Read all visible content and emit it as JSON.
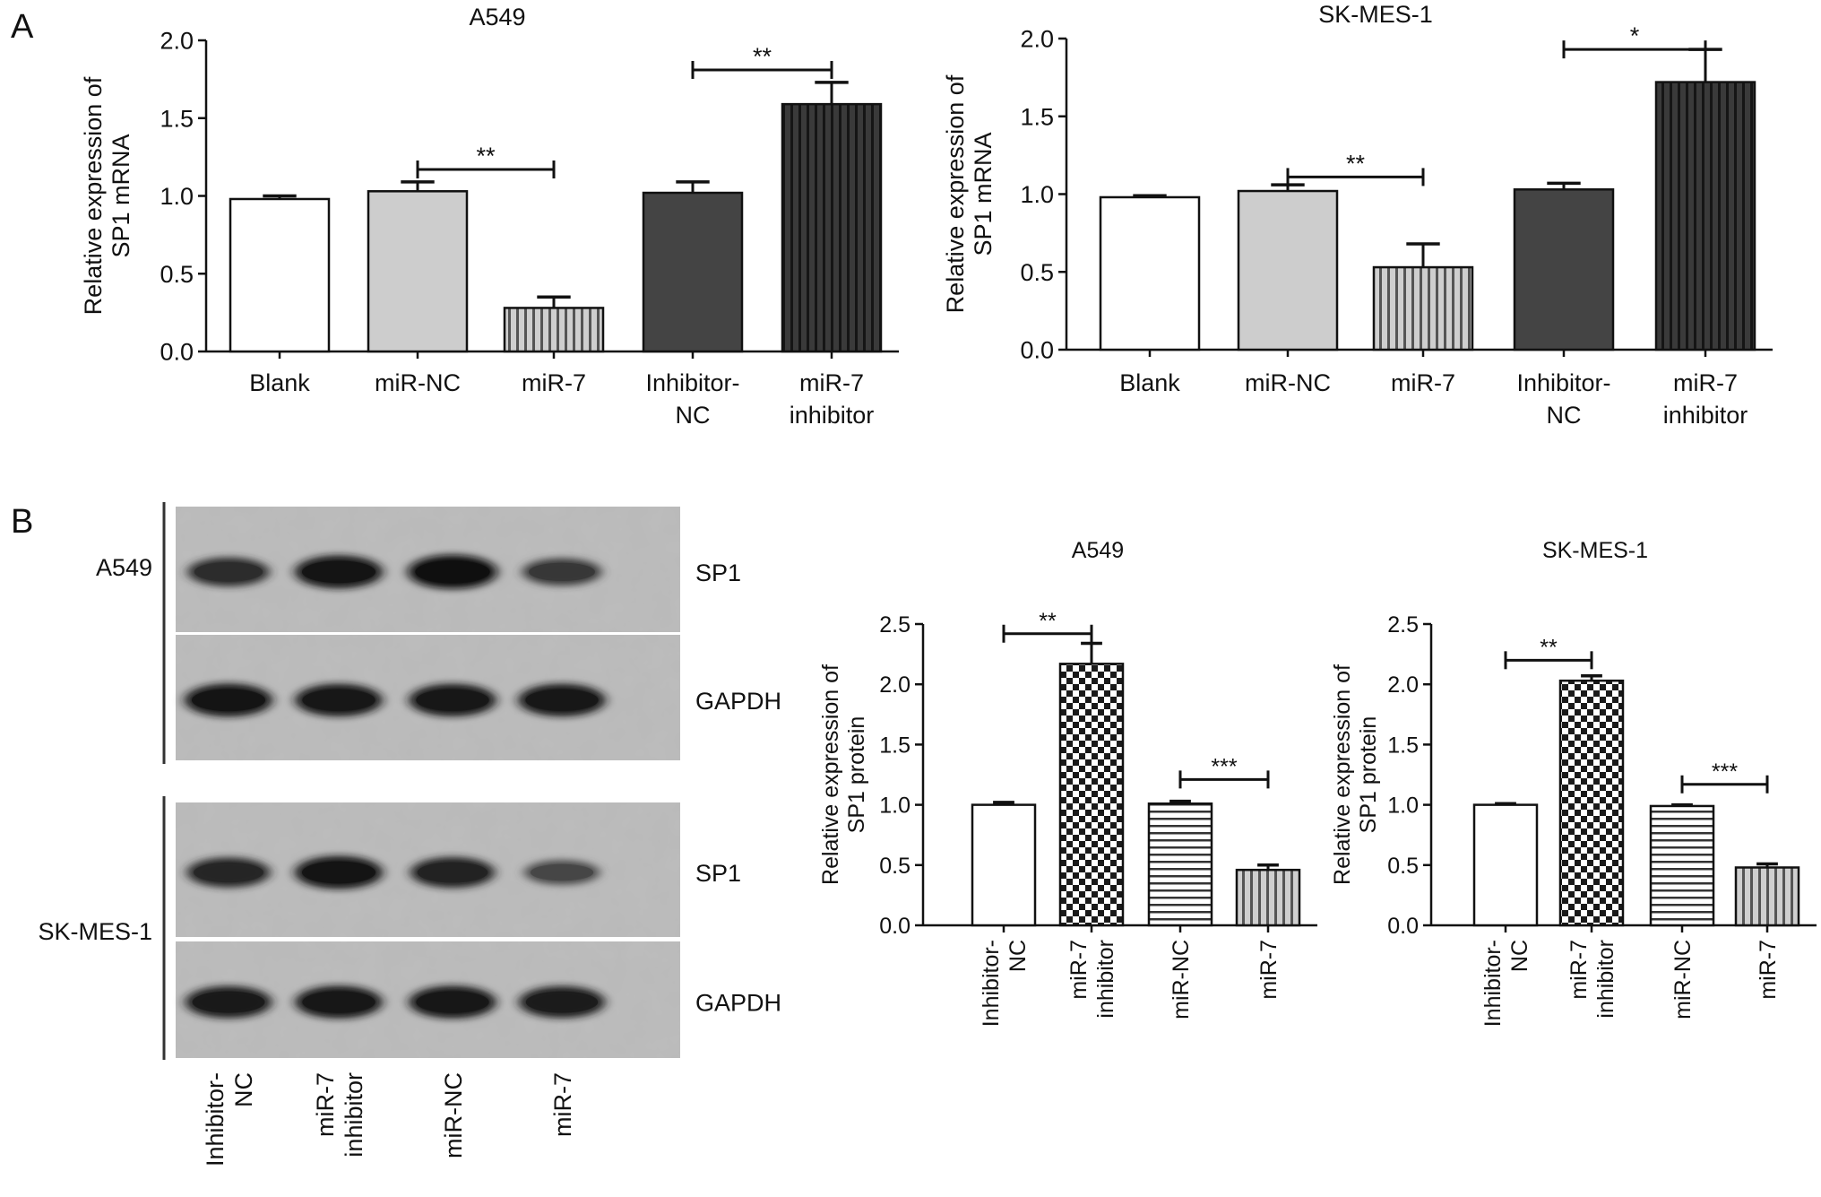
{
  "panels": [
    {
      "letter": "A"
    },
    {
      "letter": "B"
    }
  ],
  "blots": {
    "groups": [
      {
        "cell_line": "A549",
        "rows": [
          {
            "label": "SP1",
            "intensities": [
              0.72,
              0.95,
              1.0,
              0.62
            ]
          },
          {
            "label": "GAPDH",
            "intensities": [
              0.95,
              0.92,
              0.92,
              0.92
            ]
          }
        ]
      },
      {
        "cell_line": "SK-MES-1",
        "rows": [
          {
            "label": "SP1",
            "intensities": [
              0.78,
              0.95,
              0.82,
              0.48
            ]
          },
          {
            "label": "GAPDH",
            "intensities": [
              0.9,
              0.92,
              0.92,
              0.88
            ]
          }
        ]
      }
    ],
    "lanes": [
      [
        "Inhibitor-",
        "NC"
      ],
      [
        "miR-7",
        "inhibitor"
      ],
      [
        "miR-NC"
      ],
      [
        "miR-7"
      ]
    ]
  },
  "chart_data": [
    {
      "type": "bar",
      "title": "A549",
      "ylabel": [
        "Relative expression of",
        "SP1 mRNA"
      ],
      "ylim": [
        0,
        2.0
      ],
      "yticks": [
        "0.0",
        "0.5",
        "1.0",
        "1.5",
        "2.0"
      ],
      "categories": [
        [
          "Blank"
        ],
        [
          "miR-NC"
        ],
        [
          "miR-7"
        ],
        [
          "Inhibitor-",
          "NC"
        ],
        [
          "miR-7",
          "inhibitor"
        ]
      ],
      "values": [
        0.98,
        1.03,
        0.28,
        1.02,
        1.59
      ],
      "errors": [
        0.02,
        0.06,
        0.07,
        0.07,
        0.14
      ],
      "fills": [
        "white",
        "light",
        "vlines",
        "dark",
        "dvlines"
      ],
      "significance": [
        {
          "from": 1,
          "to": 2,
          "y": 1.17,
          "label": "**"
        },
        {
          "from": 3,
          "to": 4,
          "y": 1.81,
          "label": "**"
        }
      ]
    },
    {
      "type": "bar",
      "title": "SK-MES-1",
      "ylabel": [
        "Relative expression of",
        "SP1 mRNA"
      ],
      "ylim": [
        0,
        2.0
      ],
      "yticks": [
        "0.0",
        "0.5",
        "1.0",
        "1.5",
        "2.0"
      ],
      "categories": [
        [
          "Blank"
        ],
        [
          "miR-NC"
        ],
        [
          "miR-7"
        ],
        [
          "Inhibitor-",
          "NC"
        ],
        [
          "miR-7",
          "inhibitor"
        ]
      ],
      "values": [
        0.98,
        1.02,
        0.53,
        1.03,
        1.72
      ],
      "errors": [
        0.01,
        0.04,
        0.15,
        0.04,
        0.21
      ],
      "fills": [
        "white",
        "light",
        "vlines",
        "dark",
        "dvlines"
      ],
      "significance": [
        {
          "from": 1,
          "to": 2,
          "y": 1.11,
          "label": "**"
        },
        {
          "from": 3,
          "to": 4,
          "y": 1.93,
          "label": "*"
        }
      ]
    },
    {
      "type": "bar",
      "title": "A549",
      "ylabel": [
        "Relative expression of",
        "SP1 protein"
      ],
      "ylim": [
        0,
        2.5
      ],
      "yticks": [
        "0.0",
        "0.5",
        "1.0",
        "1.5",
        "2.0",
        "2.5"
      ],
      "categories": [
        [
          "Inhibitor-",
          "NC"
        ],
        [
          "miR-7",
          "inhibitor"
        ],
        [
          "miR-NC"
        ],
        [
          "miR-7"
        ]
      ],
      "values": [
        1.0,
        2.17,
        1.01,
        0.46
      ],
      "errors": [
        0.02,
        0.17,
        0.02,
        0.04
      ],
      "fills": [
        "white",
        "checker",
        "hlines",
        "vlines"
      ],
      "significance": [
        {
          "from": 0,
          "to": 1,
          "y": 2.42,
          "label": "**"
        },
        {
          "from": 2,
          "to": 3,
          "y": 1.21,
          "label": "***"
        }
      ]
    },
    {
      "type": "bar",
      "title": "SK-MES-1",
      "ylabel": [
        "Relative expression of",
        "SP1 protein"
      ],
      "ylim": [
        0,
        2.5
      ],
      "yticks": [
        "0.0",
        "0.5",
        "1.0",
        "1.5",
        "2.0",
        "2.5"
      ],
      "categories": [
        [
          "Inhibitor-",
          "NC"
        ],
        [
          "miR-7",
          "inhibitor"
        ],
        [
          "miR-NC"
        ],
        [
          "miR-7"
        ]
      ],
      "values": [
        1.0,
        2.03,
        0.99,
        0.48
      ],
      "errors": [
        0.01,
        0.04,
        0.01,
        0.03
      ],
      "fills": [
        "white",
        "checker",
        "hlines",
        "vlines"
      ],
      "significance": [
        {
          "from": 0,
          "to": 1,
          "y": 2.2,
          "label": "**"
        },
        {
          "from": 2,
          "to": 3,
          "y": 1.17,
          "label": "***"
        }
      ]
    }
  ]
}
